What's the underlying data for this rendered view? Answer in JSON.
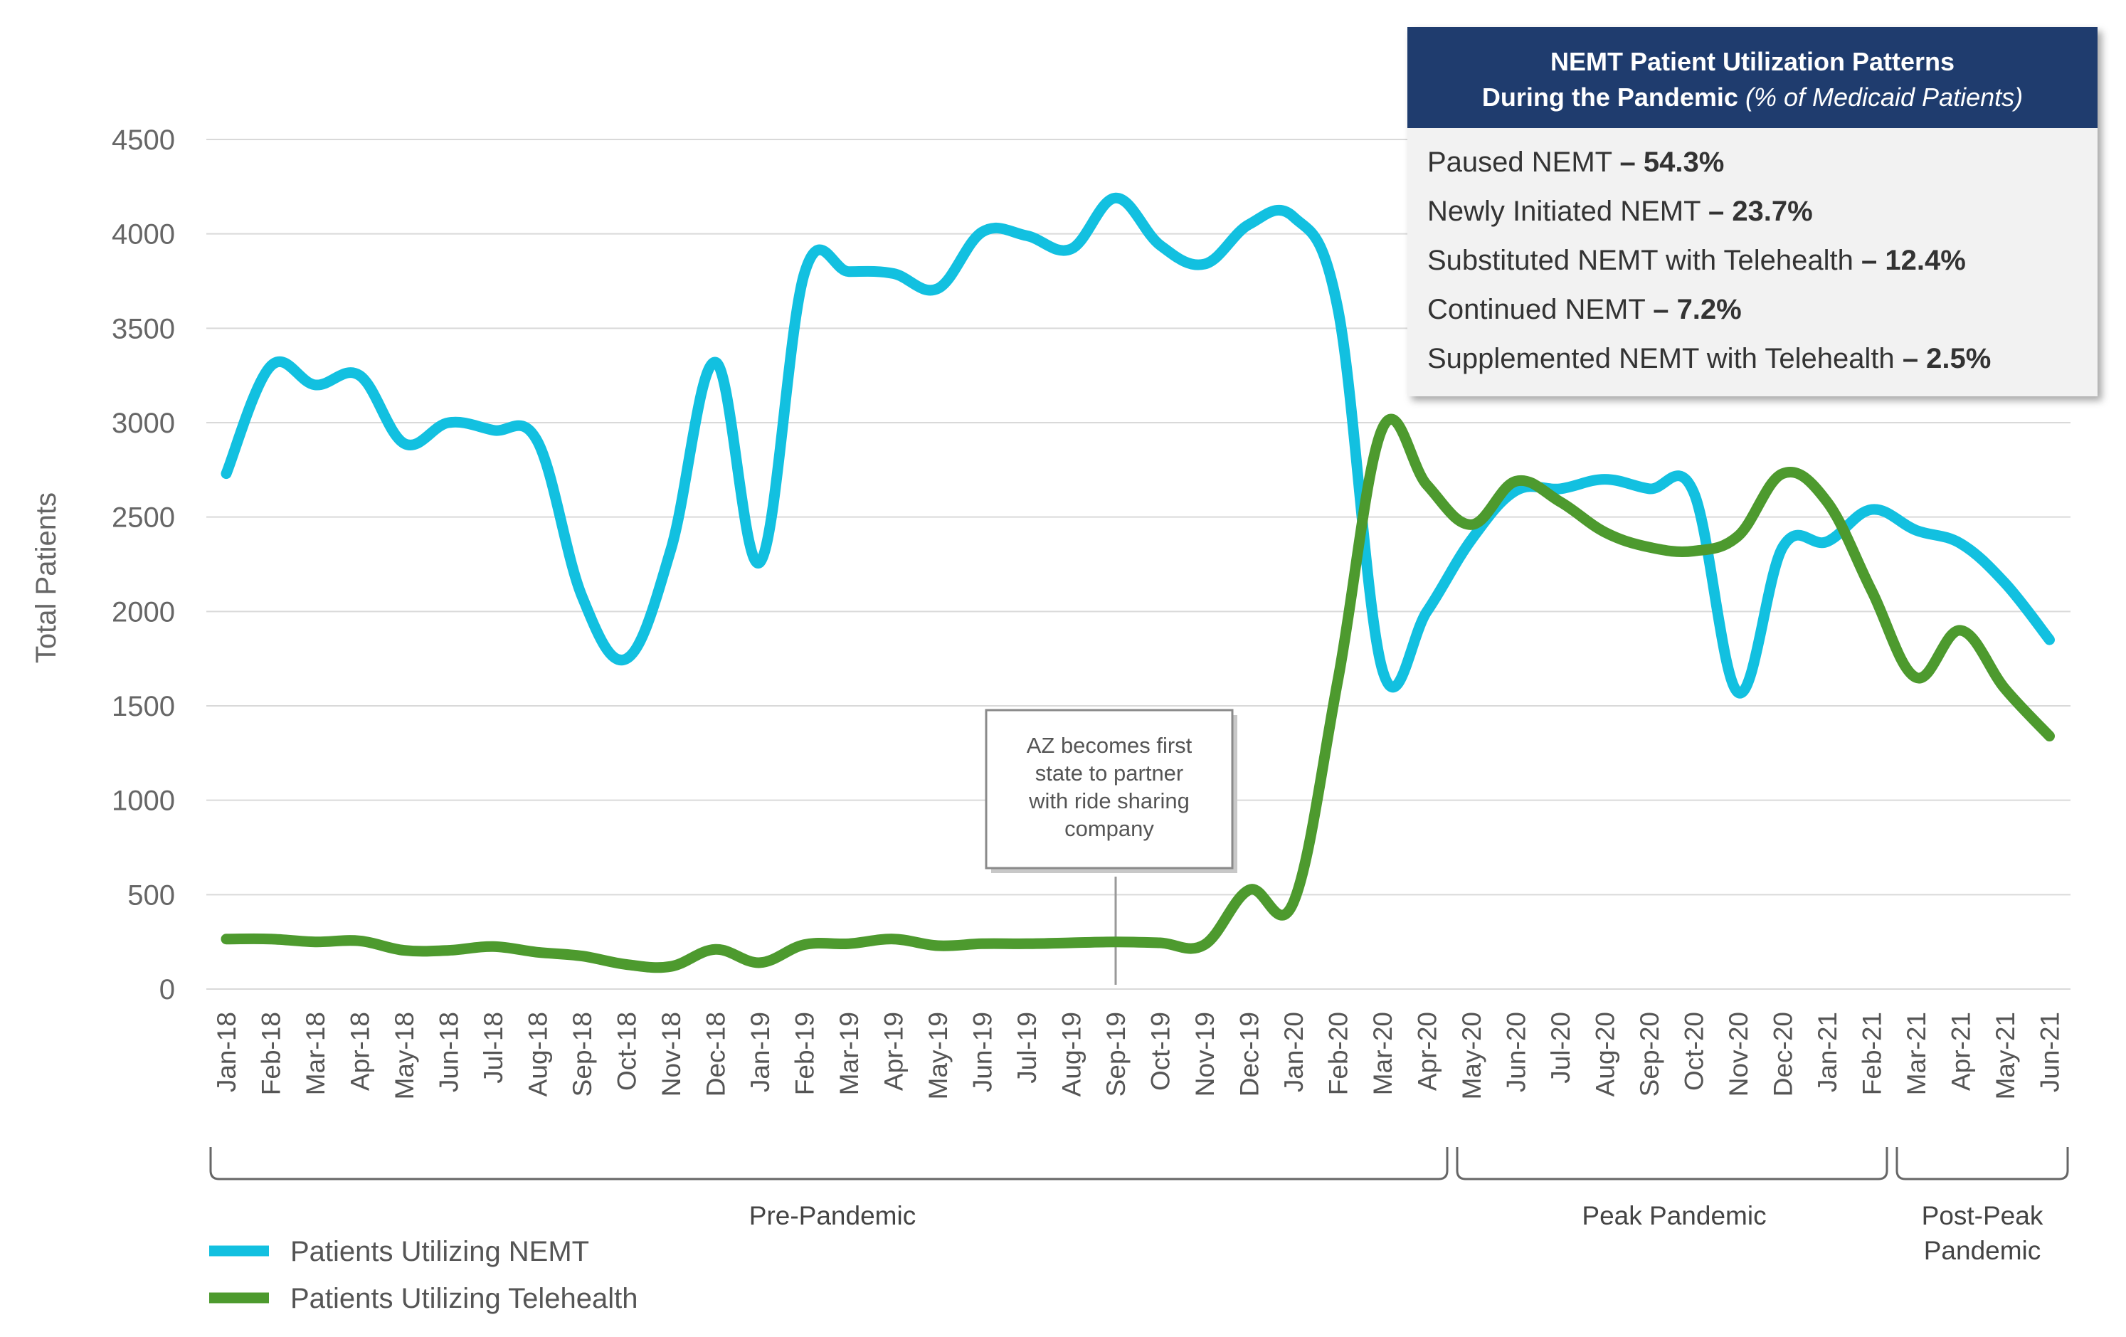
{
  "chart_data": {
    "type": "line",
    "title": "",
    "xlabel": "",
    "ylabel": "Total Patients",
    "ylim": [
      0,
      4500
    ],
    "yticks": [
      0,
      500,
      1000,
      1500,
      2000,
      2500,
      3000,
      3500,
      4000,
      4500
    ],
    "grid": true,
    "legend_position": "bottom-left",
    "categories": [
      "Jan-18",
      "Feb-18",
      "Mar-18",
      "Apr-18",
      "May-18",
      "Jun-18",
      "Jul-18",
      "Aug-18",
      "Sep-18",
      "Oct-18",
      "Nov-18",
      "Dec-18",
      "Jan-19",
      "Feb-19",
      "Mar-19",
      "Apr-19",
      "May-19",
      "Jun-19",
      "Jul-19",
      "Aug-19",
      "Sep-19",
      "Oct-19",
      "Nov-19",
      "Dec-19",
      "Jan-20",
      "Feb-20",
      "Mar-20",
      "Apr-20",
      "May-20",
      "Jun-20",
      "Jul-20",
      "Aug-20",
      "Sep-20",
      "Oct-20",
      "Nov-20",
      "Dec-20",
      "Jan-21",
      "Feb-21",
      "Mar-21",
      "Apr-21",
      "May-21",
      "Jun-21"
    ],
    "series": [
      {
        "name": "Patients Utilizing NEMT",
        "color": "#12c0e0",
        "values": [
          2730,
          3300,
          3200,
          3250,
          2890,
          3000,
          2960,
          2900,
          2080,
          1750,
          2330,
          3320,
          2260,
          3790,
          3800,
          3790,
          3710,
          4010,
          3990,
          3920,
          4190,
          3940,
          3840,
          4050,
          4090,
          3600,
          1690,
          2000,
          2380,
          2640,
          2650,
          2700,
          2650,
          2630,
          1570,
          2340,
          2370,
          2540,
          2430,
          2360,
          2150,
          1850
        ]
      },
      {
        "name": "Patients Utilizing Telehealth",
        "color": "#4d9a2e",
        "values": [
          265,
          265,
          250,
          255,
          205,
          205,
          225,
          195,
          175,
          130,
          120,
          210,
          140,
          235,
          240,
          265,
          230,
          240,
          240,
          245,
          250,
          245,
          235,
          525,
          460,
          1640,
          2970,
          2670,
          2460,
          2690,
          2580,
          2420,
          2340,
          2320,
          2400,
          2730,
          2580,
          2110,
          1650,
          1900,
          1590,
          1340
        ]
      }
    ],
    "periods": [
      {
        "label": "Pre-Pandemic"
      },
      {
        "label": "Peak Pandemic"
      },
      {
        "label_lines": [
          "Post-Peak",
          "Pandemic"
        ]
      }
    ],
    "annotation": {
      "lines": [
        "AZ becomes first",
        "state to partner",
        "with ride sharing",
        "company"
      ],
      "x": "Sep-19"
    }
  },
  "legend": [
    {
      "label": "Patients Utilizing NEMT",
      "color": "#12c0e0"
    },
    {
      "label": "Patients Utilizing Telehealth",
      "color": "#4d9a2e"
    }
  ],
  "infobox": {
    "title_line1": "NEMT Patient Utilization Patterns",
    "title_line2_bold": "During the Pandemic",
    "title_line2_italic": "(% of Medicaid Patients)",
    "rows": [
      {
        "label": "Paused NEMT",
        "value": "– 54.3%"
      },
      {
        "label": "Newly Initiated NEMT",
        "value": "– 23.7%"
      },
      {
        "label": "Substituted NEMT with Telehealth",
        "value": "– 12.4%"
      },
      {
        "label": "Continued NEMT",
        "value": "– 7.2%"
      },
      {
        "label": "Supplemented NEMT with Telehealth",
        "value": "– 2.5%"
      }
    ],
    "header_color": "#1f3c6e"
  }
}
